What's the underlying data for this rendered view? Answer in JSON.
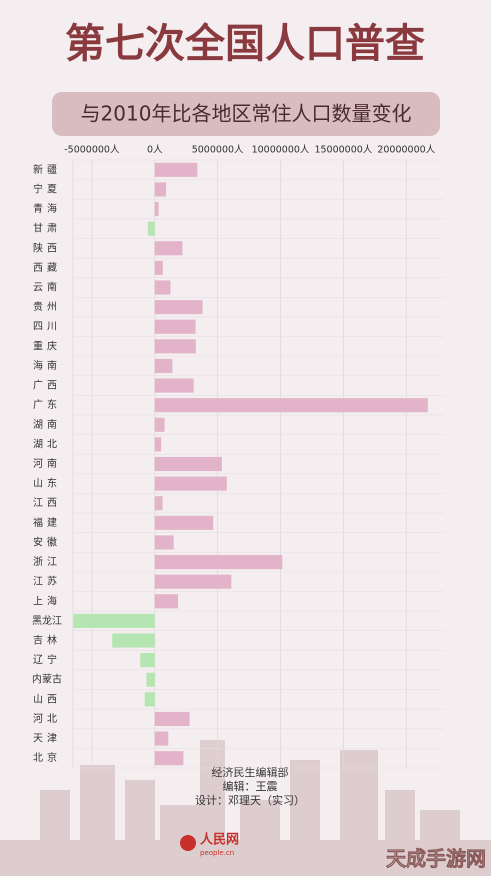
{
  "chart_data": {
    "type": "bar",
    "orientation": "horizontal",
    "title": "第七次全国人口普查",
    "subtitle": "与2010年比各地区常住人口数量变化",
    "categories": [
      "新疆",
      "宁夏",
      "青海",
      "甘肃",
      "陕西",
      "西藏",
      "云南",
      "贵州",
      "四川",
      "重庆",
      "海南",
      "广西",
      "广东",
      "湖南",
      "湖北",
      "河南",
      "山东",
      "江西",
      "福建",
      "安徽",
      "浙江",
      "江苏",
      "上海",
      "黑龙江",
      "吉林",
      "辽宁",
      "内蒙古",
      "山西",
      "河北",
      "天津",
      "北京"
    ],
    "values": [
      3390000,
      900000,
      300000,
      -550000,
      2200000,
      640000,
      1250000,
      3800000,
      3250000,
      3270000,
      1400000,
      3100000,
      21710000,
      780000,
      510000,
      5340000,
      5730000,
      620000,
      4650000,
      1510000,
      10140000,
      6090000,
      1850000,
      -6460000,
      -3380000,
      -1150000,
      -660000,
      -800000,
      2770000,
      1080000,
      2280000
    ],
    "positive_color": "#e3b4c9",
    "negative_color": "#b5e6b1",
    "xlim": [
      -6500000,
      23000000
    ],
    "xticks": [
      {
        "value": -5000000,
        "label": "-5000000人"
      },
      {
        "value": 0,
        "label": "0人"
      },
      {
        "value": 5000000,
        "label": "5000000人"
      },
      {
        "value": 10000000,
        "label": "10000000人"
      },
      {
        "value": 15000000,
        "label": "15000000人"
      },
      {
        "value": 20000000,
        "label": "20000000人"
      }
    ],
    "grid": true
  },
  "footer": {
    "department": "经济民生编辑部",
    "editor": "编辑：王震",
    "designer": "设计：邓理天（实习）",
    "logo": "人民网",
    "logo_url": "people.cn",
    "watermark": "天成手游网"
  }
}
